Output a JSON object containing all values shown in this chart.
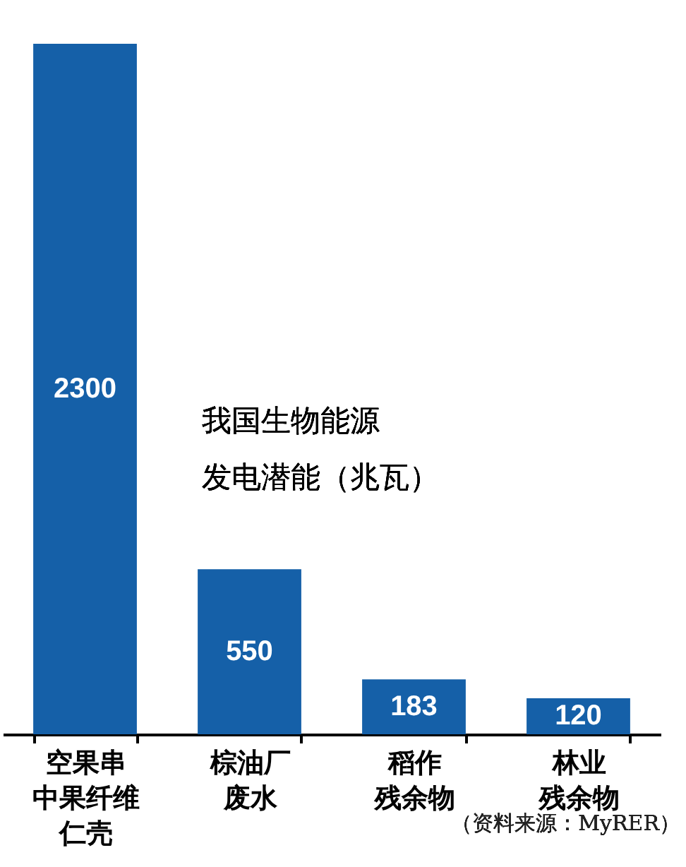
{
  "chart_data": {
    "type": "bar",
    "title": "我国生物能源发电潜能（兆瓦）",
    "categories": [
      "空果串中果纤维仁壳",
      "棕油厂废水",
      "稻作残余物",
      "林业残余物"
    ],
    "values": [
      2300,
      550,
      183,
      120
    ],
    "color": "#1560a8",
    "data_labels": true,
    "tick_labels": "x",
    "annotations": [
      "（资料来源：MyRER）"
    ]
  }
}
